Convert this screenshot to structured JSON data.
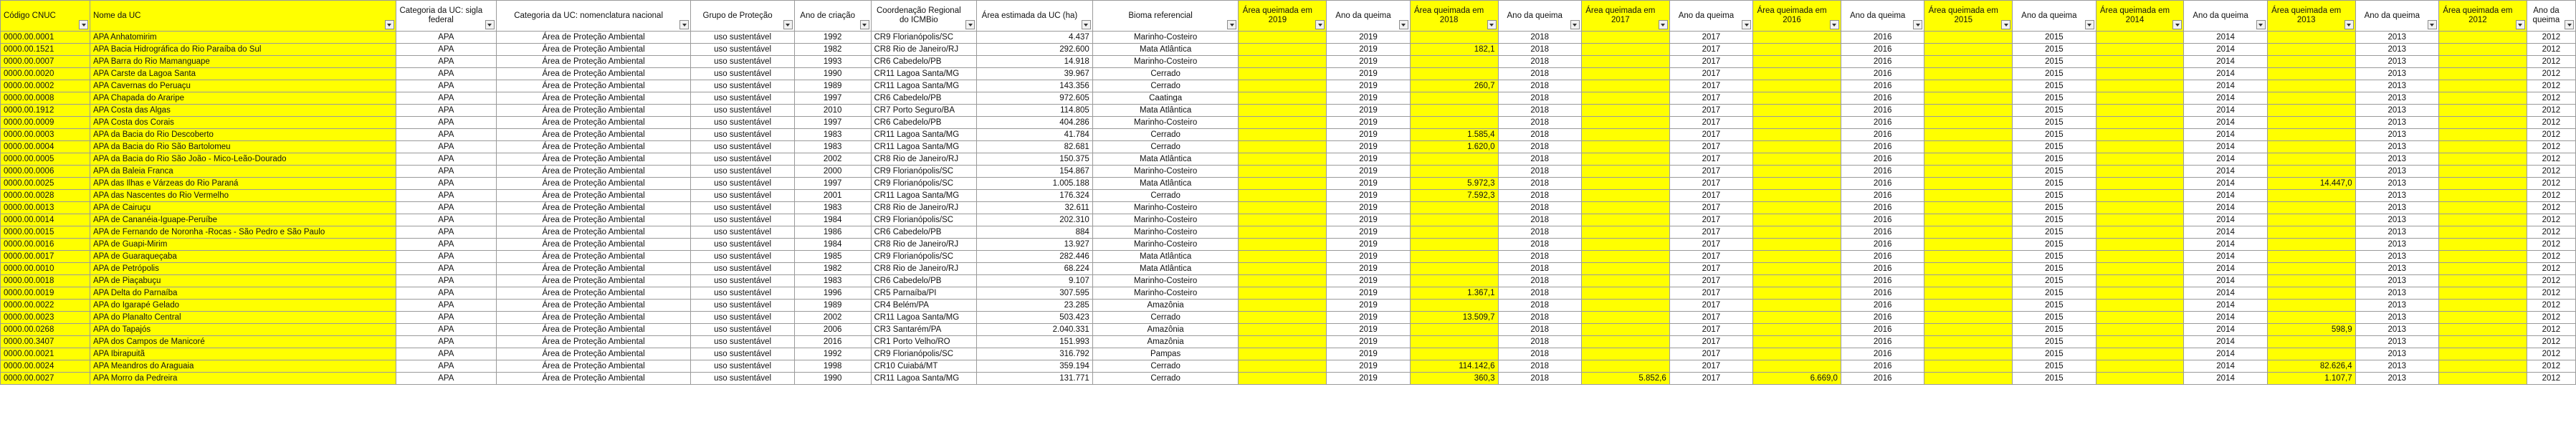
{
  "headers": [
    "Código CNUC",
    "Nome da UC",
    "Categoria da UC: sigla federal",
    "Categoria da UC: nomenclatura nacional",
    "Grupo de Proteção",
    "Ano de criação",
    "Coordenação Regional do ICMBio",
    "Área estimada da UC (ha)",
    "Bioma referencial",
    "Área queimada em 2019",
    "Ano da queima",
    "Área queimada em 2018",
    "Ano da queima",
    "Área queimada em 2017",
    "Ano da queima",
    "Área queimada em 2016",
    "Ano da queima",
    "Área queimada em 2015",
    "Ano da queima",
    "Área queimada em 2014",
    "Ano da queima",
    "Área queimada em 2013",
    "Ano da queima",
    "Área queimada em 2012",
    "Ano da queima"
  ],
  "header_display": [
    "Código CNUC",
    "Nome da UC",
    "Categoria da UC: sigla federal",
    "Categoria da UC: nomenclatura nacional",
    "Grupo de Proteção",
    "Ano de criação",
    "Coordenação Regional do ICMBio",
    "Área estimada da UC (ha)",
    "Bioma referencial",
    "Área queimada em 2019",
    "Ano da queima",
    "Área queimada em 2018",
    "Ano da queima",
    "Área queimada em 2017",
    "Ano da queima",
    "Área queimada em 2016",
    "Ano da queima",
    "Área queimada em 2015",
    "Ano da queima",
    "Área queimada em 2014",
    "Ano da queima",
    "Área queimada em 2013",
    "Ano da queima",
    "Área queimada em 2012",
    "Ano da queima"
  ],
  "years": [
    "2019",
    "2018",
    "2017",
    "2016",
    "2015",
    "2014",
    "2013",
    "2012"
  ],
  "rows": [
    [
      "0000.00.0001",
      "APA Anhatomirim",
      "APA",
      "Área de Proteção Ambiental",
      "uso sustentável",
      "1992",
      "CR9 Florianópolis/SC",
      "4.437",
      "Marinho-Costeiro",
      [
        "",
        "",
        "",
        "",
        "",
        "",
        "",
        ""
      ]
    ],
    [
      "0000.00.1521",
      "APA Bacia Hidrográfica do Rio Paraíba do Sul",
      "APA",
      "Área de Proteção Ambiental",
      "uso sustentável",
      "1982",
      "CR8 Rio de Janeiro/RJ",
      "292.600",
      "Mata Atlântica",
      [
        "",
        "182,1",
        "",
        "",
        "",
        "",
        "",
        ""
      ]
    ],
    [
      "0000.00.0007",
      "APA Barra do Rio Mamanguape",
      "APA",
      "Área de Proteção Ambiental",
      "uso sustentável",
      "1993",
      "CR6 Cabedelo/PB",
      "14.918",
      "Marinho-Costeiro",
      [
        "",
        "",
        "",
        "",
        "",
        "",
        "",
        ""
      ]
    ],
    [
      "0000.00.0020",
      "APA Carste da Lagoa Santa",
      "APA",
      "Área de Proteção Ambiental",
      "uso sustentável",
      "1990",
      "CR11 Lagoa Santa/MG",
      "39.967",
      "Cerrado",
      [
        "",
        "",
        "",
        "",
        "",
        "",
        "",
        ""
      ]
    ],
    [
      "0000.00.0002",
      "APA Cavernas do Peruaçu",
      "APA",
      "Área de Proteção Ambiental",
      "uso sustentável",
      "1989",
      "CR11 Lagoa Santa/MG",
      "143.356",
      "Cerrado",
      [
        "",
        "260,7",
        "",
        "",
        "",
        "",
        "",
        ""
      ]
    ],
    [
      "0000.00.0008",
      "APA Chapada do Araripe",
      "APA",
      "Área de Proteção Ambiental",
      "uso sustentável",
      "1997",
      "CR6 Cabedelo/PB",
      "972.605",
      "Caatinga",
      [
        "",
        "",
        "",
        "",
        "",
        "",
        "",
        ""
      ]
    ],
    [
      "0000.00.1912",
      "APA Costa das Algas",
      "APA",
      "Área de Proteção Ambiental",
      "uso sustentável",
      "2010",
      "CR7 Porto Seguro/BA",
      "114.805",
      "Mata Atlântica",
      [
        "",
        "",
        "",
        "",
        "",
        "",
        "",
        ""
      ]
    ],
    [
      "0000.00.0009",
      "APA Costa dos Corais",
      "APA",
      "Área de Proteção Ambiental",
      "uso sustentável",
      "1997",
      "CR6 Cabedelo/PB",
      "404.286",
      "Marinho-Costeiro",
      [
        "",
        "",
        "",
        "",
        "",
        "",
        "",
        ""
      ]
    ],
    [
      "0000.00.0003",
      "APA da Bacia do Rio Descoberto",
      "APA",
      "Área de Proteção Ambiental",
      "uso sustentável",
      "1983",
      "CR11 Lagoa Santa/MG",
      "41.784",
      "Cerrado",
      [
        "",
        "1.585,4",
        "",
        "",
        "",
        "",
        "",
        ""
      ]
    ],
    [
      "0000.00.0004",
      "APA da Bacia do Rio São Bartolomeu",
      "APA",
      "Área de Proteção Ambiental",
      "uso sustentável",
      "1983",
      "CR11 Lagoa Santa/MG",
      "82.681",
      "Cerrado",
      [
        "",
        "1.620,0",
        "",
        "",
        "",
        "",
        "",
        ""
      ]
    ],
    [
      "0000.00.0005",
      "APA da Bacia do Rio São João - Mico-Leão-Dourado",
      "APA",
      "Área de Proteção Ambiental",
      "uso sustentável",
      "2002",
      "CR8 Rio de Janeiro/RJ",
      "150.375",
      "Mata Atlântica",
      [
        "",
        "",
        "",
        "",
        "",
        "",
        "",
        ""
      ]
    ],
    [
      "0000.00.0006",
      "APA da Baleia Franca",
      "APA",
      "Área de Proteção Ambiental",
      "uso sustentável",
      "2000",
      "CR9 Florianópolis/SC",
      "154.867",
      "Marinho-Costeiro",
      [
        "",
        "",
        "",
        "",
        "",
        "",
        "",
        ""
      ]
    ],
    [
      "0000.00.0025",
      "APA das Ilhas e Várzeas do Rio Paraná",
      "APA",
      "Área de Proteção Ambiental",
      "uso sustentável",
      "1997",
      "CR9 Florianópolis/SC",
      "1.005.188",
      "Mata Atlântica",
      [
        "",
        "5.972,3",
        "",
        "",
        "",
        "",
        "14.447,0",
        ""
      ]
    ],
    [
      "0000.00.0028",
      "APA das Nascentes do Rio Vermelho",
      "APA",
      "Área de Proteção Ambiental",
      "uso sustentável",
      "2001",
      "CR11 Lagoa Santa/MG",
      "176.324",
      "Cerrado",
      [
        "",
        "7.592,3",
        "",
        "",
        "",
        "",
        "",
        ""
      ]
    ],
    [
      "0000.00.0013",
      "APA de Cairuçu",
      "APA",
      "Área de Proteção Ambiental",
      "uso sustentável",
      "1983",
      "CR8 Rio de Janeiro/RJ",
      "32.611",
      "Marinho-Costeiro",
      [
        "",
        "",
        "",
        "",
        "",
        "",
        "",
        ""
      ]
    ],
    [
      "0000.00.0014",
      "APA de Cananéia-Iguape-Peruíbe",
      "APA",
      "Área de Proteção Ambiental",
      "uso sustentável",
      "1984",
      "CR9 Florianópolis/SC",
      "202.310",
      "Marinho-Costeiro",
      [
        "",
        "",
        "",
        "",
        "",
        "",
        "",
        ""
      ]
    ],
    [
      "0000.00.0015",
      "APA de Fernando de Noronha -Rocas - São Pedro e São Paulo",
      "APA",
      "Área de Proteção Ambiental",
      "uso sustentável",
      "1986",
      "CR6 Cabedelo/PB",
      "884",
      "Marinho-Costeiro",
      [
        "",
        "",
        "",
        "",
        "",
        "",
        "",
        ""
      ]
    ],
    [
      "0000.00.0016",
      "APA de Guapi-Mirim",
      "APA",
      "Área de Proteção Ambiental",
      "uso sustentável",
      "1984",
      "CR8 Rio de Janeiro/RJ",
      "13.927",
      "Marinho-Costeiro",
      [
        "",
        "",
        "",
        "",
        "",
        "",
        "",
        ""
      ]
    ],
    [
      "0000.00.0017",
      "APA de Guaraqueçaba",
      "APA",
      "Área de Proteção Ambiental",
      "uso sustentável",
      "1985",
      "CR9 Florianópolis/SC",
      "282.446",
      "Mata Atlântica",
      [
        "",
        "",
        "",
        "",
        "",
        "",
        "",
        ""
      ]
    ],
    [
      "0000.00.0010",
      "APA de Petrópolis",
      "APA",
      "Área de Proteção Ambiental",
      "uso sustentável",
      "1982",
      "CR8 Rio de Janeiro/RJ",
      "68.224",
      "Mata Atlântica",
      [
        "",
        "",
        "",
        "",
        "",
        "",
        "",
        ""
      ]
    ],
    [
      "0000.00.0018",
      "APA de Piaçabuçu",
      "APA",
      "Área de Proteção Ambiental",
      "uso sustentável",
      "1983",
      "CR6 Cabedelo/PB",
      "9.107",
      "Marinho-Costeiro",
      [
        "",
        "",
        "",
        "",
        "",
        "",
        "",
        ""
      ]
    ],
    [
      "0000.00.0019",
      "APA Delta do Parnaíba",
      "APA",
      "Área de Proteção Ambiental",
      "uso sustentável",
      "1996",
      "CR5 Parnaíba/PI",
      "307.595",
      "Marinho-Costeiro",
      [
        "",
        "1.367,1",
        "",
        "",
        "",
        "",
        "",
        ""
      ]
    ],
    [
      "0000.00.0022",
      "APA do Igarapé Gelado",
      "APA",
      "Área de Proteção Ambiental",
      "uso sustentável",
      "1989",
      "CR4 Belém/PA",
      "23.285",
      "Amazônia",
      [
        "",
        "",
        "",
        "",
        "",
        "",
        "",
        ""
      ]
    ],
    [
      "0000.00.0023",
      "APA do Planalto Central",
      "APA",
      "Área de Proteção Ambiental",
      "uso sustentável",
      "2002",
      "CR11 Lagoa Santa/MG",
      "503.423",
      "Cerrado",
      [
        "",
        "13.509,7",
        "",
        "",
        "",
        "",
        "",
        ""
      ]
    ],
    [
      "0000.00.0268",
      "APA do Tapajós",
      "APA",
      "Área de Proteção Ambiental",
      "uso sustentável",
      "2006",
      "CR3 Santarém/PA",
      "2.040.331",
      "Amazônia",
      [
        "",
        "",
        "",
        "",
        "",
        "",
        "598,9",
        ""
      ]
    ],
    [
      "0000.00.3407",
      "APA dos Campos de Manicoré",
      "APA",
      "Área de Proteção Ambiental",
      "uso sustentável",
      "2016",
      "CR1 Porto Velho/RO",
      "151.993",
      "Amazônia",
      [
        "",
        "",
        "",
        "",
        "",
        "",
        "",
        ""
      ]
    ],
    [
      "0000.00.0021",
      "APA Ibirapuitã",
      "APA",
      "Área de Proteção Ambiental",
      "uso sustentável",
      "1992",
      "CR9 Florianópolis/SC",
      "316.792",
      "Pampas",
      [
        "",
        "",
        "",
        "",
        "",
        "",
        "",
        ""
      ]
    ],
    [
      "0000.00.0024",
      "APA Meandros do Araguaia",
      "APA",
      "Área de Proteção Ambiental",
      "uso sustentável",
      "1998",
      "CR10 Cuiabá/MT",
      "359.194",
      "Cerrado",
      [
        "",
        "114.142,6",
        "",
        "",
        "",
        "",
        "82.626,4",
        ""
      ]
    ],
    [
      "0000.00.0027",
      "APA Morro da Pedreira",
      "APA",
      "Área de Proteção Ambiental",
      "uso sustentável",
      "1990",
      "CR11 Lagoa Santa/MG",
      "131.771",
      "Cerrado",
      [
        "",
        "360,3",
        "5.852,6",
        "6.669,0",
        "",
        "",
        "1.107,7",
        ""
      ]
    ]
  ]
}
